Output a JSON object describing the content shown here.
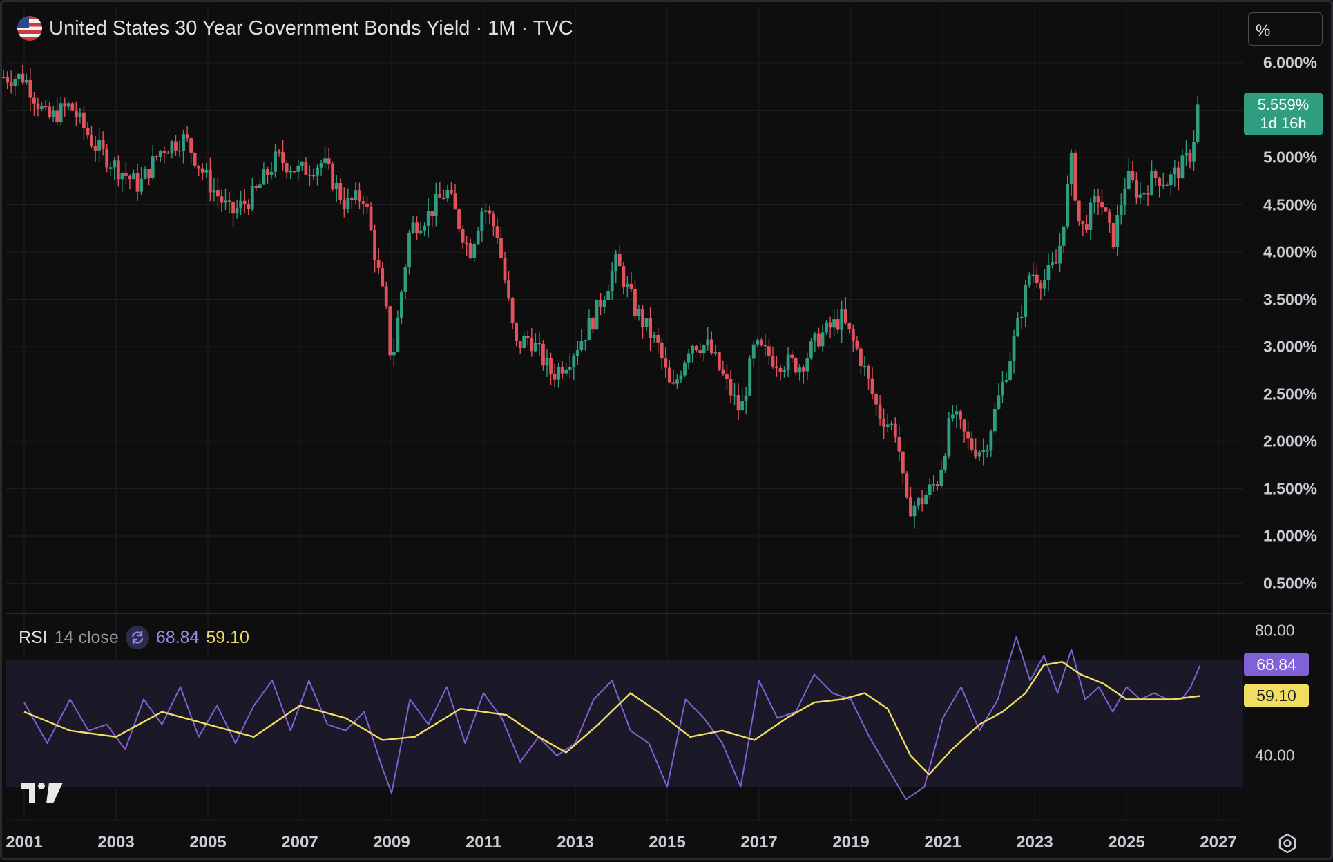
{
  "header": {
    "title": "United States 30 Year Government Bonds Yield · 1M · TVC",
    "unit_button": "%"
  },
  "price_axis": {
    "ticks": [
      "6.000%",
      "5.000%",
      "4.500%",
      "4.000%",
      "3.500%",
      "3.000%",
      "2.500%",
      "2.000%",
      "1.500%",
      "1.000%",
      "0.500%"
    ],
    "last_price": "5.559%",
    "countdown": "1d 16h"
  },
  "rsi": {
    "name": "RSI",
    "params": "14 close",
    "value": "68.84",
    "ma_value": "59.10",
    "ticks": [
      "80.00",
      "40.00"
    ]
  },
  "time_axis": {
    "ticks": [
      "2001",
      "2003",
      "2005",
      "2007",
      "2009",
      "2011",
      "2013",
      "2015",
      "2017",
      "2019",
      "2021",
      "2023",
      "2025",
      "2027"
    ]
  },
  "colors": {
    "up": "#2f9e80",
    "down": "#e2525c",
    "rsi": "#7e62d6",
    "rsi_ma": "#f2dd63",
    "rsi_band": "#1b1828"
  },
  "icons": [
    "us-flag-icon",
    "sync-icon",
    "tradingview-logo",
    "settings-icon"
  ],
  "chart_data": [
    {
      "type": "line",
      "title": "United States 30 Year Government Bonds Yield · 1M · TVC",
      "xlabel": "",
      "ylabel": "",
      "ylim": [
        0.3,
        6.2
      ],
      "series": [
        {
          "name": "United States 30 Year Government Bonds Yield",
          "x": [
            2001.0,
            2001.5,
            2002.0,
            2002.5,
            2003.0,
            2003.5,
            2004.0,
            2004.5,
            2005.0,
            2005.5,
            2006.0,
            2006.5,
            2007.0,
            2007.5,
            2008.0,
            2008.4,
            2008.9,
            2009.0,
            2009.4,
            2009.8,
            2010.2,
            2010.7,
            2011.0,
            2011.3,
            2011.7,
            2012.0,
            2012.5,
            2012.9,
            2013.4,
            2013.9,
            2014.3,
            2014.8,
            2015.1,
            2015.5,
            2015.9,
            2016.3,
            2016.6,
            2016.9,
            2017.4,
            2017.9,
            2018.3,
            2018.8,
            2019.2,
            2019.6,
            2020.0,
            2020.2,
            2020.5,
            2020.9,
            2021.2,
            2021.6,
            2021.9,
            2022.3,
            2022.6,
            2022.9,
            2023.2,
            2023.5,
            2023.8,
            2024.0,
            2024.4,
            2024.7,
            2025.0,
            2025.3,
            2025.6,
            2025.9,
            2026.2,
            2026.4,
            2026.6
          ],
          "values": [
            5.85,
            5.4,
            5.55,
            5.15,
            4.9,
            4.7,
            5.1,
            5.2,
            4.75,
            4.4,
            4.6,
            5.0,
            4.85,
            4.95,
            4.5,
            4.6,
            3.3,
            2.8,
            4.25,
            4.4,
            4.65,
            4.0,
            4.5,
            4.2,
            3.0,
            3.1,
            2.7,
            2.9,
            3.3,
            3.9,
            3.4,
            3.0,
            2.5,
            3.05,
            3.0,
            2.6,
            2.3,
            3.0,
            2.85,
            2.8,
            3.1,
            3.3,
            2.9,
            2.3,
            2.1,
            1.3,
            1.35,
            1.6,
            2.3,
            1.95,
            1.9,
            2.6,
            3.15,
            3.8,
            3.7,
            3.9,
            4.95,
            4.2,
            4.6,
            4.1,
            4.8,
            4.6,
            4.8,
            4.75,
            4.9,
            5.05,
            5.559
          ],
          "color": "#2f9e80"
        }
      ]
    },
    {
      "type": "line",
      "title": "RSI 14 close",
      "xlabel": "",
      "ylabel": "",
      "ylim": [
        20,
        85
      ],
      "series": [
        {
          "name": "RSI",
          "x": [
            2001.0,
            2001.5,
            2002.0,
            2002.4,
            2002.8,
            2003.2,
            2003.6,
            2004.0,
            2004.4,
            2004.8,
            2005.2,
            2005.6,
            2006.0,
            2006.4,
            2006.8,
            2007.2,
            2007.6,
            2008.0,
            2008.4,
            2008.8,
            2009.0,
            2009.4,
            2009.8,
            2010.2,
            2010.6,
            2011.0,
            2011.4,
            2011.8,
            2012.2,
            2012.6,
            2013.0,
            2013.4,
            2013.8,
            2014.2,
            2014.6,
            2015.0,
            2015.4,
            2015.8,
            2016.2,
            2016.6,
            2017.0,
            2017.4,
            2017.8,
            2018.2,
            2018.6,
            2019.0,
            2019.4,
            2019.8,
            2020.2,
            2020.6,
            2021.0,
            2021.4,
            2021.8,
            2022.2,
            2022.6,
            2022.9,
            2023.2,
            2023.5,
            2023.8,
            2024.1,
            2024.4,
            2024.7,
            2025.0,
            2025.3,
            2025.6,
            2025.9,
            2026.2,
            2026.4,
            2026.6
          ],
          "values": [
            57,
            44,
            58,
            48,
            50,
            42,
            58,
            50,
            62,
            46,
            56,
            44,
            56,
            64,
            48,
            64,
            50,
            48,
            54,
            36,
            28,
            58,
            50,
            62,
            44,
            60,
            52,
            38,
            46,
            40,
            44,
            58,
            64,
            48,
            44,
            30,
            58,
            52,
            44,
            30,
            64,
            52,
            54,
            66,
            60,
            58,
            46,
            36,
            26,
            30,
            52,
            62,
            48,
            58,
            78,
            64,
            72,
            60,
            74,
            58,
            62,
            54,
            62,
            58,
            60,
            58,
            58,
            62,
            68.84
          ],
          "color": "#7e62d6"
        },
        {
          "name": "RSI-based MA",
          "x": [
            2001.0,
            2002.0,
            2003.0,
            2004.0,
            2005.0,
            2006.0,
            2007.0,
            2008.0,
            2008.8,
            2009.5,
            2010.5,
            2011.5,
            2012.2,
            2012.8,
            2013.5,
            2014.2,
            2014.8,
            2015.5,
            2016.2,
            2016.9,
            2017.6,
            2018.2,
            2018.8,
            2019.3,
            2019.8,
            2020.3,
            2020.7,
            2021.2,
            2021.8,
            2022.3,
            2022.8,
            2023.2,
            2023.6,
            2024.0,
            2024.5,
            2025.0,
            2025.5,
            2026.0,
            2026.6
          ],
          "values": [
            54,
            48,
            46,
            54,
            50,
            46,
            56,
            52,
            45,
            46,
            55,
            53,
            46,
            41,
            50,
            60,
            54,
            46,
            48,
            45,
            52,
            57,
            58,
            60,
            55,
            40,
            34,
            42,
            50,
            54,
            60,
            69,
            70,
            66,
            63,
            58,
            58,
            58,
            59.1
          ],
          "color": "#f2dd63"
        }
      ],
      "reference_lines": [
        70,
        50,
        30
      ]
    }
  ]
}
